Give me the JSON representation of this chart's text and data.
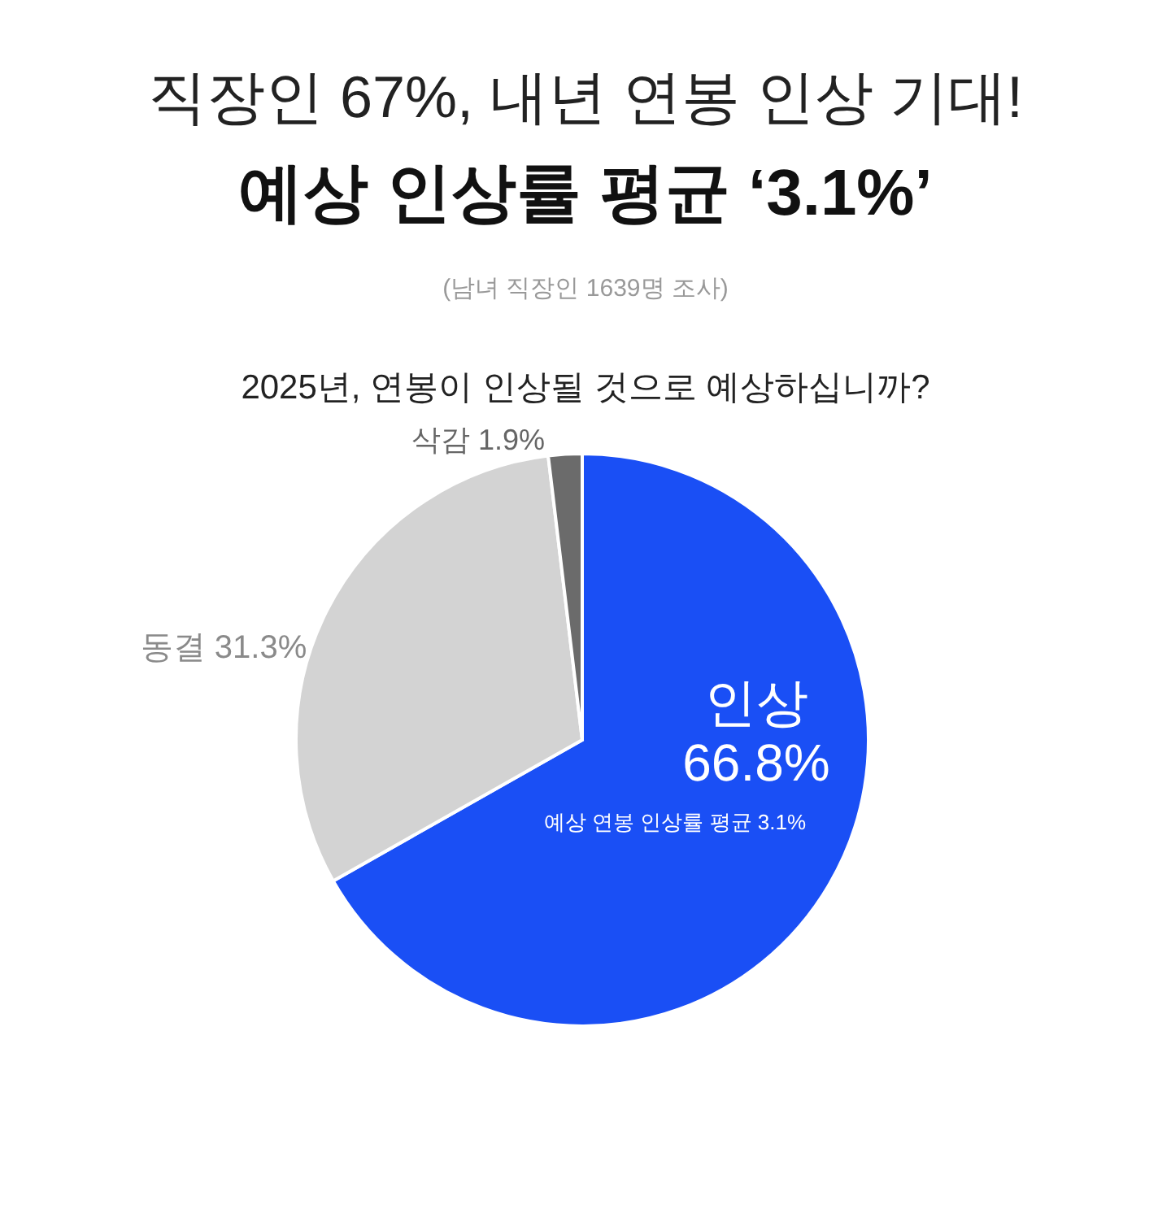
{
  "chart_data": {
    "type": "pie",
    "title": "직장인 67%, 내년 연봉 인상 기대!",
    "subtitle": "예상 인상률 평균 ‘3.1%’",
    "categories": [
      "인상",
      "동결",
      "삭감"
    ],
    "values": [
      66.8,
      31.3,
      1.9
    ],
    "value_labels": [
      "66.8%",
      "31.3%",
      "1.9%"
    ],
    "colors": [
      "#1a4ff5",
      "#d3d3d3",
      "#6b6b6b"
    ],
    "annotations": [
      "(남녀 직장인 1639명 조사)",
      "2025년, 연봉이 인상될 것으로 예상하십니까?",
      "예상 연봉 인상률 평균 3.1%"
    ]
  }
}
